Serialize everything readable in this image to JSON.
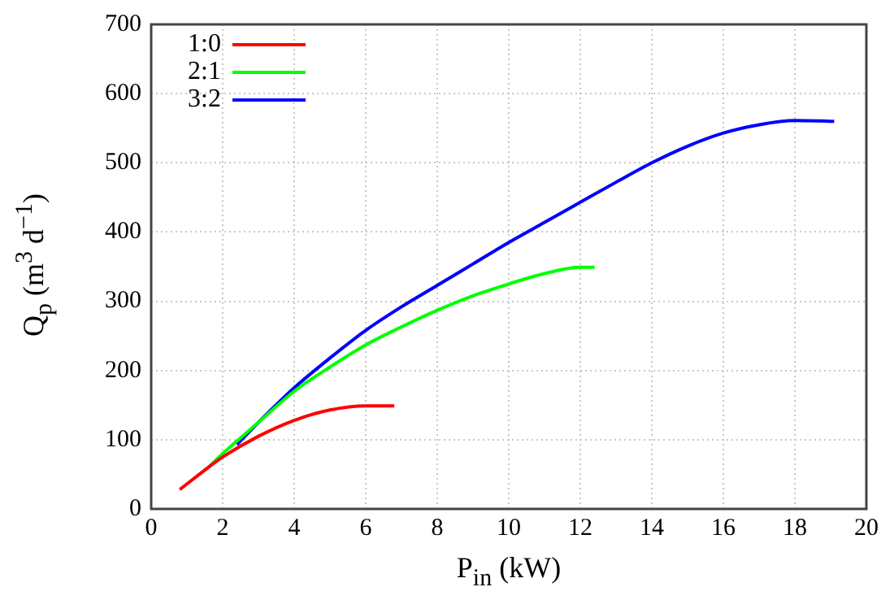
{
  "chart_data": {
    "type": "line",
    "xlabel": "P$_{in}$ (kW)",
    "ylabel": "Q$_{p}$ (m$^{3}$ d$^{−1}$)",
    "xlim": [
      0,
      20
    ],
    "xticks": [
      0,
      2,
      4,
      6,
      8,
      10,
      12,
      14,
      16,
      18,
      20
    ],
    "ylim": [
      0,
      700
    ],
    "yticks": [
      0,
      100,
      200,
      300,
      400,
      500,
      600,
      700
    ],
    "grid": true,
    "legend": "top left",
    "marker": "none",
    "line_style": "solid",
    "series": [
      {
        "name": "1:0",
        "color": "#ff0000",
        "x": [
          0.8,
          1.6,
          2,
          3,
          4,
          5,
          6,
          6.8
        ],
        "values": [
          28,
          60,
          75,
          105,
          128,
          143,
          149,
          149
        ]
      },
      {
        "name": "2:1",
        "color": "#00ff00",
        "x": [
          1.6,
          2,
          3,
          4,
          5,
          6,
          7,
          8,
          9,
          10,
          11,
          12,
          12.4
        ],
        "values": [
          60,
          80,
          125,
          170,
          205,
          237,
          263,
          287,
          308,
          325,
          340,
          349,
          349
        ]
      },
      {
        "name": "3:2",
        "color": "#0000ff",
        "x": [
          2.4,
          3,
          4,
          5,
          6,
          7,
          8,
          9,
          10,
          11,
          12,
          13,
          14,
          15,
          16,
          17,
          18,
          19.1
        ],
        "values": [
          93,
          125,
          175,
          218,
          258,
          292,
          323,
          354,
          385,
          414,
          443,
          472,
          500,
          524,
          543,
          555,
          561,
          560
        ]
      }
    ]
  }
}
